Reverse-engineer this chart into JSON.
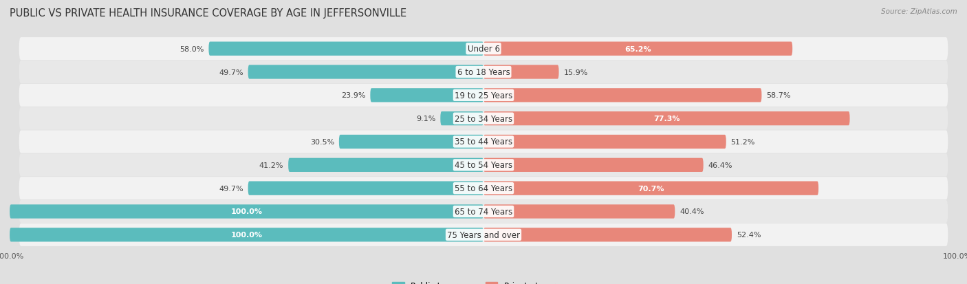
{
  "title": "PUBLIC VS PRIVATE HEALTH INSURANCE COVERAGE BY AGE IN JEFFERSONVILLE",
  "source": "Source: ZipAtlas.com",
  "categories": [
    "Under 6",
    "6 to 18 Years",
    "19 to 25 Years",
    "25 to 34 Years",
    "35 to 44 Years",
    "45 to 54 Years",
    "55 to 64 Years",
    "65 to 74 Years",
    "75 Years and over"
  ],
  "public_values": [
    58.0,
    49.7,
    23.9,
    9.1,
    30.5,
    41.2,
    49.7,
    100.0,
    100.0
  ],
  "private_values": [
    65.2,
    15.9,
    58.7,
    77.3,
    51.2,
    46.4,
    70.7,
    40.4,
    52.4
  ],
  "public_color": "#5bbcbd",
  "private_color": "#e8877a",
  "background_color": "#e0e0e0",
  "row_bg_even": "#f2f2f2",
  "row_bg_odd": "#e8e8e8",
  "title_fontsize": 10.5,
  "source_fontsize": 7.5,
  "label_fontsize": 8.5,
  "value_fontsize": 8.0,
  "max_value": 100.0,
  "figsize": [
    14.06,
    4.14
  ],
  "dpi": 100
}
